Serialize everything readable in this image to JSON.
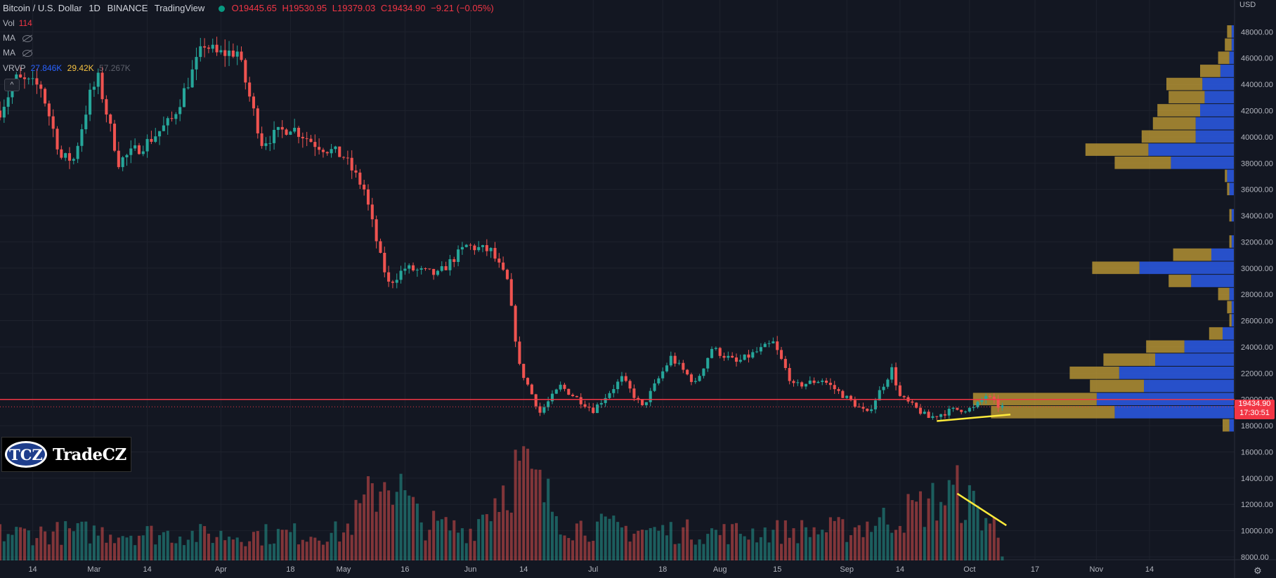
{
  "header": {
    "symbol": "Bitcoin / U.S. Dollar",
    "interval": "1D",
    "exchange": "BINANCE",
    "source": "TradingView",
    "ohlc": {
      "o": "O19445.65",
      "h": "H19530.95",
      "l": "L19379.03",
      "c": "C19434.90",
      "chg": "−9.21 (−0.05%)"
    }
  },
  "indicators": {
    "vol_label": "Vol",
    "vol_value": "114",
    "ma1": "MA",
    "ma2": "MA",
    "vrvp_label": "VRVP",
    "vrvp_up": "27.846K",
    "vrvp_down": "29.42K",
    "vrvp_total": "57.267K"
  },
  "logo": {
    "badge": "TCZ",
    "name": "TradeCZ"
  },
  "price_axis": {
    "currency": "USD"
  },
  "last_price": {
    "value": "19434.90",
    "countdown": "17:30:51"
  },
  "colors": {
    "up": "#26a69a",
    "down": "#ef5350",
    "bg": "#131722",
    "vp_up": "#2c5ae8",
    "vp_down": "#c8a135",
    "annotation": "#ffeb3b",
    "hline": "#f23645"
  },
  "chart_data": {
    "type": "candlestick",
    "title": "Bitcoin / U.S. Dollar, 1D, BINANCE",
    "y_range": [
      8000,
      48500
    ],
    "y_ticks": [
      8000,
      10000,
      12000,
      14000,
      16000,
      18000,
      20000,
      22000,
      24000,
      26000,
      28000,
      30000,
      32000,
      34000,
      36000,
      38000,
      40000,
      42000,
      44000,
      46000,
      48000
    ],
    "x_range": [
      "2022-02-06",
      "2022-12-01"
    ],
    "x_ticks": [
      {
        "date": "2022-02-14",
        "label": "14"
      },
      {
        "date": "2022-03-01",
        "label": "Mar"
      },
      {
        "date": "2022-03-14",
        "label": "14"
      },
      {
        "date": "2022-04-01",
        "label": "Apr"
      },
      {
        "date": "2022-04-18",
        "label": "18"
      },
      {
        "date": "2022-05-01",
        "label": "May"
      },
      {
        "date": "2022-05-16",
        "label": "16"
      },
      {
        "date": "2022-06-01",
        "label": "Jun"
      },
      {
        "date": "2022-06-14",
        "label": "14"
      },
      {
        "date": "2022-07-01",
        "label": "Jul"
      },
      {
        "date": "2022-07-18",
        "label": "18"
      },
      {
        "date": "2022-08-01",
        "label": "Aug"
      },
      {
        "date": "2022-08-15",
        "label": "15"
      },
      {
        "date": "2022-09-01",
        "label": "Sep"
      },
      {
        "date": "2022-09-14",
        "label": "14"
      },
      {
        "date": "2022-10-01",
        "label": "Oct"
      },
      {
        "date": "2022-10-17",
        "label": "17"
      },
      {
        "date": "2022-11-01",
        "label": "Nov"
      },
      {
        "date": "2022-11-14",
        "label": "14"
      }
    ],
    "price_path": [
      [
        "2022-02-06",
        42000
      ],
      [
        "2022-02-10",
        44400
      ],
      [
        "2022-02-16",
        43800
      ],
      [
        "2022-02-21",
        38400
      ],
      [
        "2022-02-24",
        38300
      ],
      [
        "2022-02-28",
        43200
      ],
      [
        "2022-03-02",
        44400
      ],
      [
        "2022-03-07",
        38100
      ],
      [
        "2022-03-14",
        39600
      ],
      [
        "2022-03-20",
        41300
      ],
      [
        "2022-03-28",
        47100
      ],
      [
        "2022-03-31",
        46300
      ],
      [
        "2022-04-05",
        46500
      ],
      [
        "2022-04-11",
        39600
      ],
      [
        "2022-04-18",
        40800
      ],
      [
        "2022-04-24",
        39500
      ],
      [
        "2022-05-01",
        38500
      ],
      [
        "2022-05-06",
        36000
      ],
      [
        "2022-05-10",
        30800
      ],
      [
        "2022-05-12",
        28800
      ],
      [
        "2022-05-16",
        30000
      ],
      [
        "2022-05-24",
        29500
      ],
      [
        "2022-05-31",
        31700
      ],
      [
        "2022-06-06",
        31300
      ],
      [
        "2022-06-10",
        29000
      ],
      [
        "2022-06-13",
        22500
      ],
      [
        "2022-06-18",
        19000
      ],
      [
        "2022-06-23",
        21000
      ],
      [
        "2022-07-01",
        19200
      ],
      [
        "2022-07-08",
        21600
      ],
      [
        "2022-07-13",
        19400
      ],
      [
        "2022-07-20",
        23200
      ],
      [
        "2022-07-26",
        21200
      ],
      [
        "2022-07-30",
        23900
      ],
      [
        "2022-08-05",
        22800
      ],
      [
        "2022-08-14",
        24300
      ],
      [
        "2022-08-19",
        21000
      ],
      [
        "2022-08-26",
        21500
      ],
      [
        "2022-09-01",
        20100
      ],
      [
        "2022-09-06",
        18900
      ],
      [
        "2022-09-12",
        22300
      ],
      [
        "2022-09-14",
        20200
      ],
      [
        "2022-09-21",
        18600
      ],
      [
        "2022-09-27",
        19200
      ],
      [
        "2022-10-02",
        19300
      ],
      [
        "2022-10-05",
        20300
      ],
      [
        "2022-10-08",
        19500
      ],
      [
        "2022-10-09",
        19435
      ]
    ],
    "volume_pane": {
      "label": "Vol",
      "range": [
        0,
        2000
      ]
    },
    "volume_path": [
      [
        "2022-02-06",
        320
      ],
      [
        "2022-03-01",
        340
      ],
      [
        "2022-04-01",
        300
      ],
      [
        "2022-05-01",
        330
      ],
      [
        "2022-05-12",
        1050
      ],
      [
        "2022-05-20",
        440
      ],
      [
        "2022-06-01",
        360
      ],
      [
        "2022-06-13",
        1130
      ],
      [
        "2022-06-25",
        420
      ],
      [
        "2022-07-13",
        360
      ],
      [
        "2022-08-01",
        330
      ],
      [
        "2022-09-01",
        370
      ],
      [
        "2022-09-13",
        520
      ],
      [
        "2022-09-28",
        810
      ],
      [
        "2022-10-07",
        420
      ],
      [
        "2022-10-09",
        60
      ]
    ],
    "volume_profile": [
      {
        "price": 18000,
        "up": 3,
        "down": 2
      },
      {
        "price": 19000,
        "up": 55,
        "down": 53
      },
      {
        "price": 20000,
        "up": 55,
        "down": 61
      },
      {
        "price": 21000,
        "up": 24,
        "down": 40
      },
      {
        "price": 22000,
        "up": 22,
        "down": 51
      },
      {
        "price": 23000,
        "up": 23,
        "down": 35
      },
      {
        "price": 24000,
        "up": 17,
        "down": 22
      },
      {
        "price": 25000,
        "up": 6,
        "down": 5
      },
      {
        "price": 26000,
        "up": 1,
        "down": 1
      },
      {
        "price": 27000,
        "up": 2,
        "down": 1
      },
      {
        "price": 28000,
        "up": 5,
        "down": 2
      },
      {
        "price": 29000,
        "up": 10,
        "down": 19
      },
      {
        "price": 30000,
        "up": 21,
        "down": 42
      },
      {
        "price": 31000,
        "up": 17,
        "down": 10
      },
      {
        "price": 32000,
        "up": 1,
        "down": 1
      },
      {
        "price": 34000,
        "up": 1,
        "down": 1
      },
      {
        "price": 36000,
        "up": 1,
        "down": 2
      },
      {
        "price": 37000,
        "up": 1,
        "down": 3
      },
      {
        "price": 38000,
        "up": 25,
        "down": 28
      },
      {
        "price": 39000,
        "up": 28,
        "down": 38
      },
      {
        "price": 40000,
        "up": 24,
        "down": 17
      },
      {
        "price": 41000,
        "up": 19,
        "down": 17
      },
      {
        "price": 42000,
        "up": 19,
        "down": 15
      },
      {
        "price": 43000,
        "up": 16,
        "down": 13
      },
      {
        "price": 44000,
        "up": 16,
        "down": 14
      },
      {
        "price": 45000,
        "up": 9,
        "down": 6
      },
      {
        "price": 46000,
        "up": 5,
        "down": 2
      },
      {
        "price": 47000,
        "up": 3,
        "down": 1
      },
      {
        "price": 48000,
        "up": 2,
        "down": 1
      }
    ],
    "horizontal_line": 20000,
    "last_price": 19434.9,
    "trendlines": [
      {
        "pane": "price",
        "from": [
          "2022-09-23",
          18350
        ],
        "to": [
          "2022-10-11",
          18850
        ]
      },
      {
        "pane": "volume",
        "from": [
          "2022-09-28",
          800
        ],
        "to": [
          "2022-10-10",
          420
        ]
      }
    ]
  }
}
